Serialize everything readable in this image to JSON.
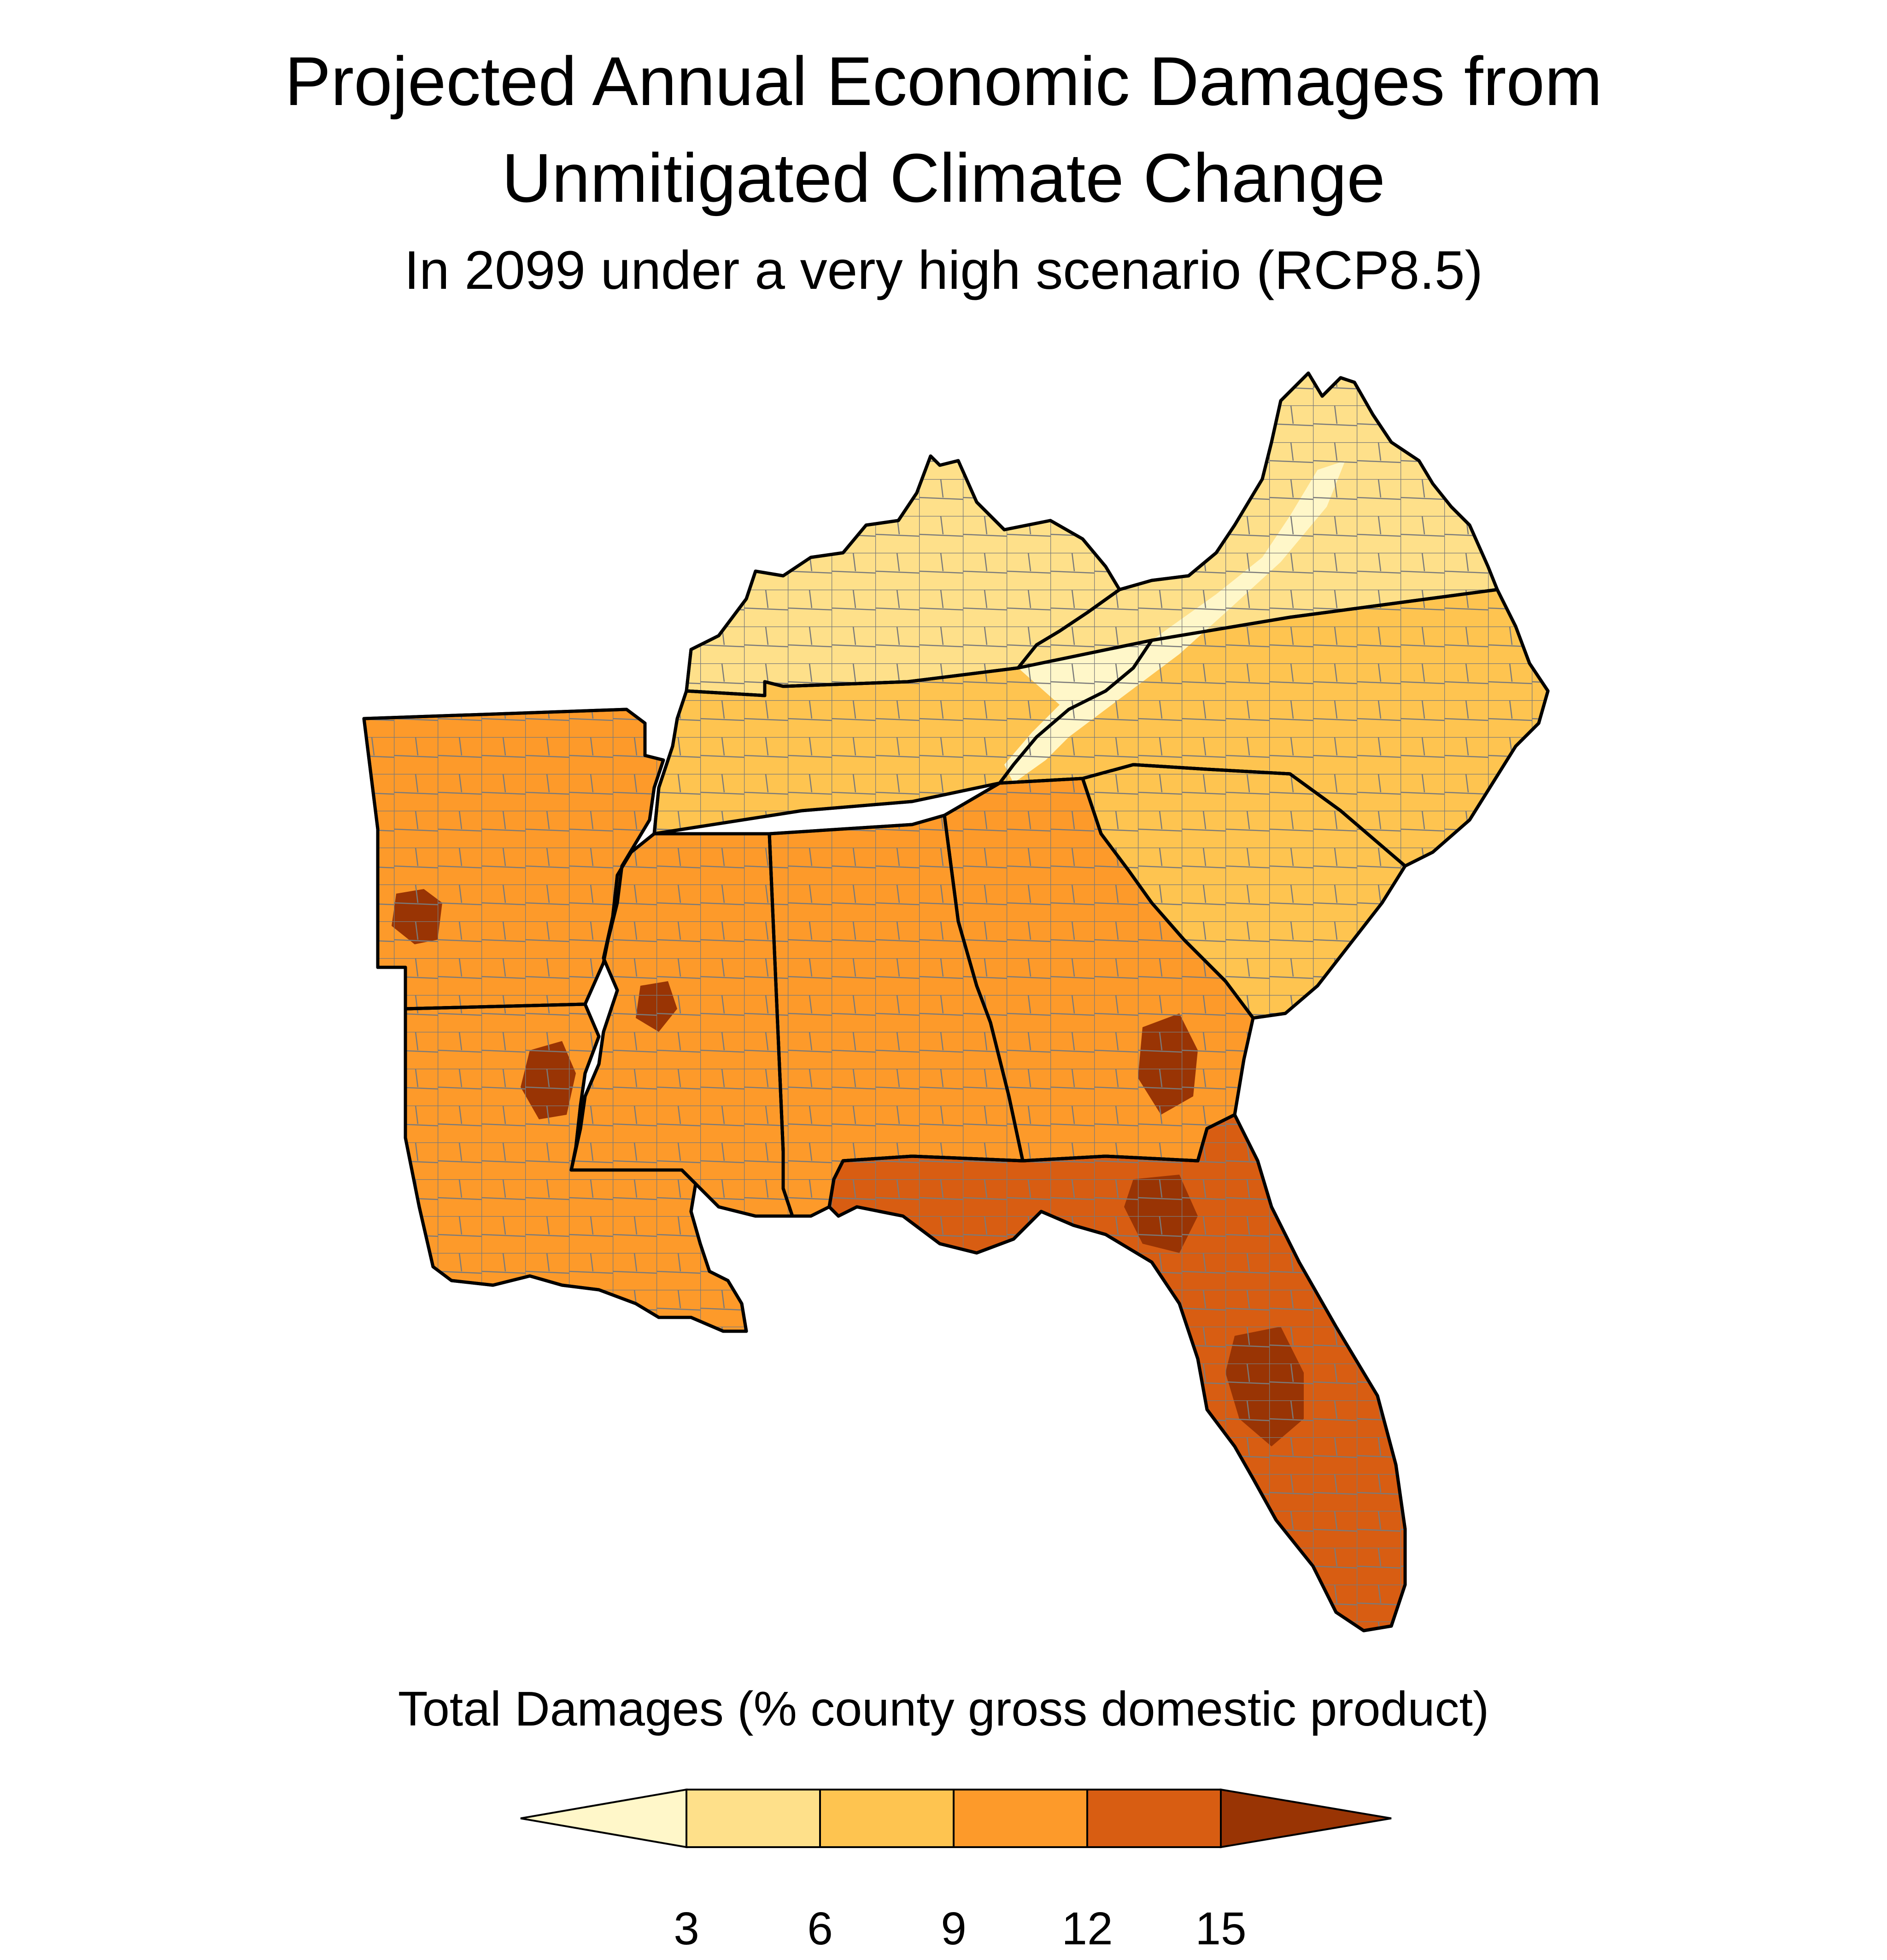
{
  "title_line1": "Projected Annual Economic Damages from",
  "title_line2": "Unmitigated Climate Change",
  "subtitle": "In 2099 under a very high scenario (RCP8.5)",
  "legend": {
    "title": "Total Damages (% county gross domestic product)",
    "ticks": [
      "3",
      "6",
      "9",
      "12",
      "15"
    ],
    "colors": [
      "#fff7c9",
      "#fee08a",
      "#fec450",
      "#fd9a2a",
      "#d85d12",
      "#993404"
    ],
    "extend": "both"
  },
  "map": {
    "region": "Southeastern United States",
    "boundary_color": "#000000",
    "county_line_color": "#7a7a7a",
    "regions": [
      {
        "name": "kentucky",
        "level": 1
      },
      {
        "name": "virginia",
        "level": 1
      },
      {
        "name": "tennessee",
        "level": 2
      },
      {
        "name": "north-carolina",
        "level": 2
      },
      {
        "name": "arkansas",
        "level": 3
      },
      {
        "name": "south-carolina",
        "level": 2
      },
      {
        "name": "georgia",
        "level": 3
      },
      {
        "name": "alabama",
        "level": 3
      },
      {
        "name": "mississippi",
        "level": 3
      },
      {
        "name": "louisiana",
        "level": 3
      },
      {
        "name": "florida",
        "level": 4
      },
      {
        "name": "appalachian-band",
        "level": 0
      },
      {
        "name": "sw-arkansas-hotspot",
        "level": 5
      },
      {
        "name": "ne-louisiana-hotspot",
        "level": 5
      },
      {
        "name": "central-mississippi-hotspot",
        "level": 5
      },
      {
        "name": "se-georgia-hotspot",
        "level": 5
      },
      {
        "name": "central-florida-hotspot",
        "level": 5
      },
      {
        "name": "north-florida-hotspot",
        "level": 5
      }
    ]
  }
}
